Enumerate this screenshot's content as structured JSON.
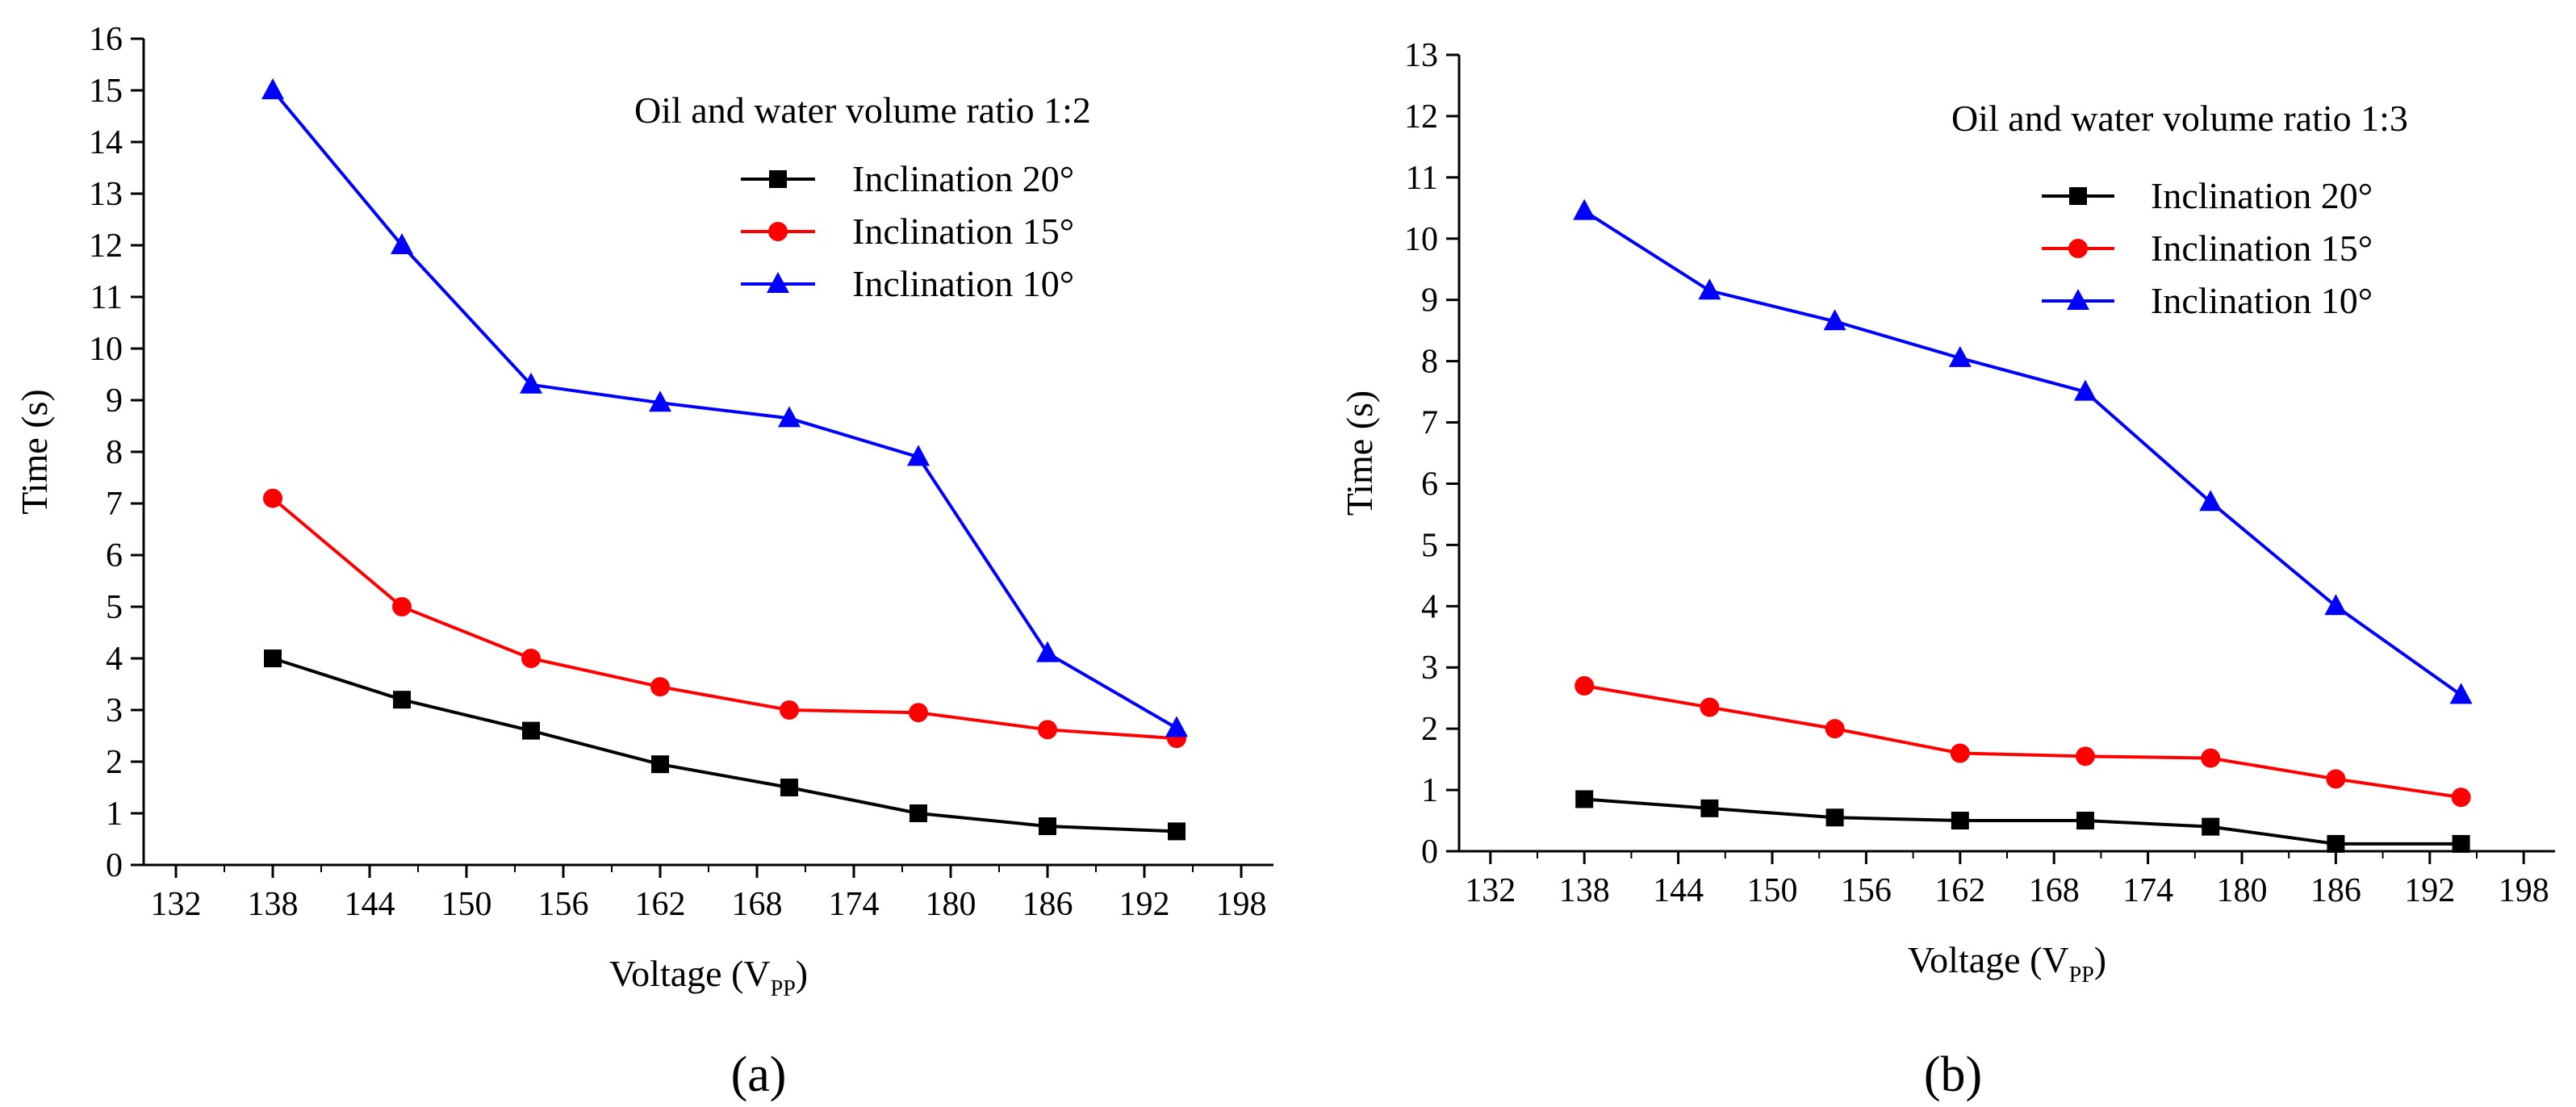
{
  "figure_labels": [
    "(a)",
    "(b)"
  ],
  "chart_data": [
    {
      "type": "line",
      "panel_label": "(a)",
      "annotation": "Oil and water volume ratio 1:2",
      "xlabel_main": "Voltage (V",
      "xlabel_sub": "PP",
      "xlabel_end": ")",
      "ylabel": "Time (s)",
      "xlim": [
        130,
        200
      ],
      "ylim": [
        0,
        16
      ],
      "xticks": [
        132,
        138,
        144,
        150,
        156,
        162,
        168,
        174,
        180,
        186,
        192,
        198
      ],
      "yticks": [
        0,
        1,
        2,
        3,
        4,
        5,
        6,
        7,
        8,
        9,
        10,
        11,
        12,
        13,
        14,
        15,
        16
      ],
      "x": [
        138,
        146,
        154,
        162,
        170,
        178,
        186,
        194
      ],
      "legend_position": "top-right",
      "series": [
        {
          "name": "Inclination 20°",
          "color": "#000000",
          "marker": "square",
          "values": [
            4.0,
            3.2,
            2.6,
            1.95,
            1.5,
            1.0,
            0.75,
            0.65
          ]
        },
        {
          "name": "Inclination 15°",
          "color": "#ff0000",
          "marker": "circle",
          "values": [
            7.1,
            5.0,
            4.0,
            3.45,
            3.0,
            2.95,
            2.62,
            2.45
          ]
        },
        {
          "name": "Inclination 10°",
          "color": "#0000ff",
          "marker": "triangle",
          "values": [
            15.0,
            12.0,
            9.3,
            8.95,
            8.65,
            7.9,
            4.1,
            2.65
          ]
        }
      ]
    },
    {
      "type": "line",
      "panel_label": "(b)",
      "annotation": "Oil and water volume ratio 1:3",
      "xlabel_main": "Voltage (V",
      "xlabel_sub": "PP",
      "xlabel_end": ")",
      "ylabel": "Time (s)",
      "xlim": [
        130,
        200
      ],
      "ylim": [
        0,
        13
      ],
      "xticks": [
        132,
        138,
        144,
        150,
        156,
        162,
        168,
        174,
        180,
        186,
        192,
        198
      ],
      "yticks": [
        0,
        1,
        2,
        3,
        4,
        5,
        6,
        7,
        8,
        9,
        10,
        11,
        12,
        13
      ],
      "x": [
        138,
        146,
        154,
        162,
        170,
        178,
        186,
        194
      ],
      "legend_position": "top-right",
      "series": [
        {
          "name": "Inclination 20°",
          "color": "#000000",
          "marker": "square",
          "values": [
            0.85,
            0.7,
            0.55,
            0.5,
            0.5,
            0.4,
            0.12,
            0.12
          ]
        },
        {
          "name": "Inclination 15°",
          "color": "#ff0000",
          "marker": "circle",
          "values": [
            2.7,
            2.35,
            2.0,
            1.6,
            1.55,
            1.52,
            1.18,
            0.88
          ]
        },
        {
          "name": "Inclination 10°",
          "color": "#0000ff",
          "marker": "triangle",
          "values": [
            10.45,
            9.15,
            8.65,
            8.05,
            7.5,
            5.7,
            4.0,
            2.55
          ]
        }
      ]
    }
  ]
}
